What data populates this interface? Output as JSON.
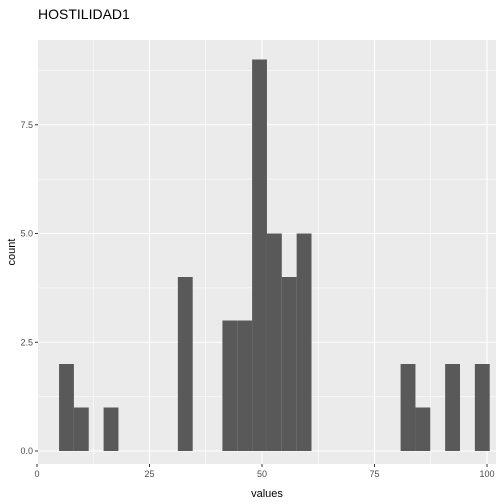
{
  "chart_data": {
    "type": "bar",
    "title": "HOSTILIDAD1",
    "xlabel": "values",
    "ylabel": "count",
    "xlim": [
      0,
      100
    ],
    "ylim": [
      0,
      9.5
    ],
    "bin_width": 3.3,
    "x_ticks": [
      0,
      25,
      50,
      75,
      100
    ],
    "y_ticks": [
      0.0,
      2.5,
      5.0,
      7.5
    ],
    "x_tick_labels": [
      "0",
      "25",
      "50",
      "75",
      "100"
    ],
    "y_tick_labels": [
      "0.0",
      "2.5",
      "5.0",
      "7.5"
    ],
    "grid": true,
    "legend": "none",
    "bins": [
      {
        "start": 4.9,
        "end": 8.2,
        "count": 2
      },
      {
        "start": 8.2,
        "end": 11.5,
        "count": 1
      },
      {
        "start": 14.8,
        "end": 18.1,
        "count": 1
      },
      {
        "start": 31.3,
        "end": 34.6,
        "count": 4
      },
      {
        "start": 41.2,
        "end": 44.5,
        "count": 3
      },
      {
        "start": 44.5,
        "end": 47.8,
        "count": 3
      },
      {
        "start": 47.8,
        "end": 51.1,
        "count": 9
      },
      {
        "start": 51.1,
        "end": 54.4,
        "count": 5
      },
      {
        "start": 54.4,
        "end": 57.7,
        "count": 4
      },
      {
        "start": 57.7,
        "end": 61.0,
        "count": 5
      },
      {
        "start": 80.8,
        "end": 84.1,
        "count": 2
      },
      {
        "start": 84.1,
        "end": 87.4,
        "count": 1
      },
      {
        "start": 87.4,
        "end": 90.7,
        "count": 0
      },
      {
        "start": 90.7,
        "end": 94.0,
        "count": 2
      },
      {
        "start": 94.0,
        "end": 97.3,
        "count": 0
      },
      {
        "start": 97.3,
        "end": 100.6,
        "count": 2
      }
    ],
    "colors": {
      "panel": "#ebebeb",
      "grid_major": "#ffffff",
      "bar": "#595959",
      "tick_text": "#4d4d4d",
      "tick_mark": "#333333"
    }
  }
}
